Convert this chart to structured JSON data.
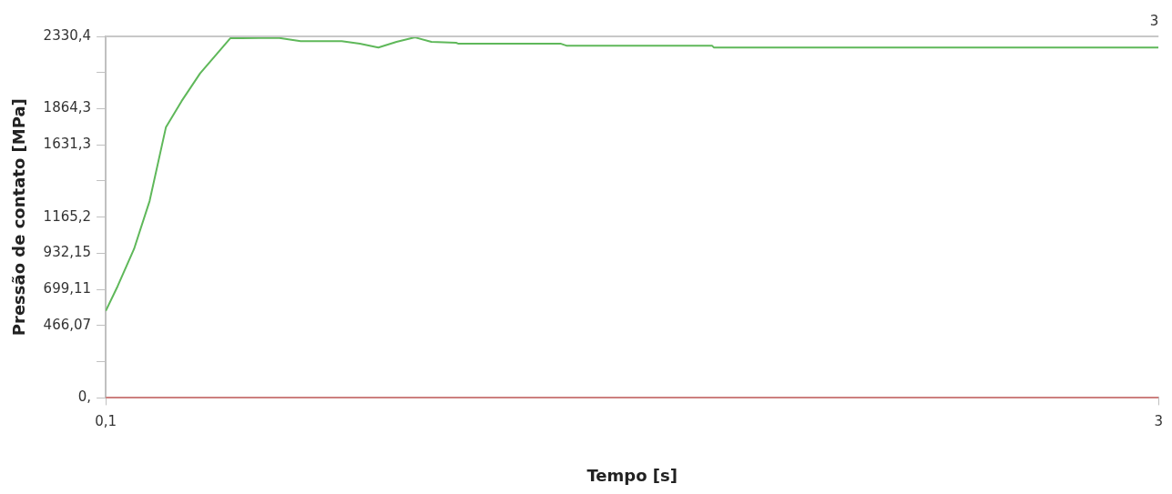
{
  "chart_data": {
    "type": "line",
    "xlabel": "Tempo [s]",
    "ylabel": "Pressão de contato [MPa]",
    "annotations": [
      "3"
    ],
    "x": [
      0.1,
      0.133,
      0.178,
      0.221,
      0.266,
      0.309,
      0.36,
      0.443,
      0.473,
      0.523,
      0.574,
      0.637,
      0.75,
      0.8,
      0.851,
      0.901,
      0.952,
      0.997,
      1.065,
      1.072,
      1.354,
      1.369,
      1.77,
      1.775,
      3
    ],
    "series": [
      {
        "color": "#5fb85a",
        "values": [
          560,
          721,
          960,
          1270,
          1746,
          1913,
          2092,
          2318,
          2318,
          2320,
          2322,
          2300,
          2300,
          2283,
          2259,
          2295,
          2324,
          2295,
          2289,
          2283,
          2283,
          2271,
          2271,
          2259,
          2259
        ]
      },
      {
        "color": "#d9403f",
        "values": [
          0,
          0,
          0,
          0,
          0,
          0,
          0,
          0,
          0,
          0,
          0,
          0,
          0,
          0,
          0,
          0,
          0,
          0,
          0,
          0,
          0,
          0,
          0,
          0,
          0
        ]
      }
    ],
    "xlim": [
      0.1,
      3
    ],
    "xticks": [
      {
        "value": 0.1,
        "label": "0,1"
      },
      {
        "value": 3,
        "label": "3"
      }
    ],
    "ylim": [
      0,
      2330.4
    ],
    "yticks": [
      {
        "value": 0,
        "label": "0,"
      },
      {
        "value": 233.04,
        "label": null
      },
      {
        "value": 466.07,
        "label": "466,07"
      },
      {
        "value": 699.11,
        "label": "699,11"
      },
      {
        "value": 932.15,
        "label": "932,15"
      },
      {
        "value": 1165.2,
        "label": "1165,2"
      },
      {
        "value": 1398.3,
        "label": null
      },
      {
        "value": 1631.3,
        "label": "1631,3"
      },
      {
        "value": 1864.3,
        "label": "1864,3"
      },
      {
        "value": 2097.4,
        "label": null
      },
      {
        "value": 2330.4,
        "label": "2330,4"
      }
    ],
    "grid": false,
    "legend": false,
    "marker": "none",
    "line_style": "solid"
  }
}
